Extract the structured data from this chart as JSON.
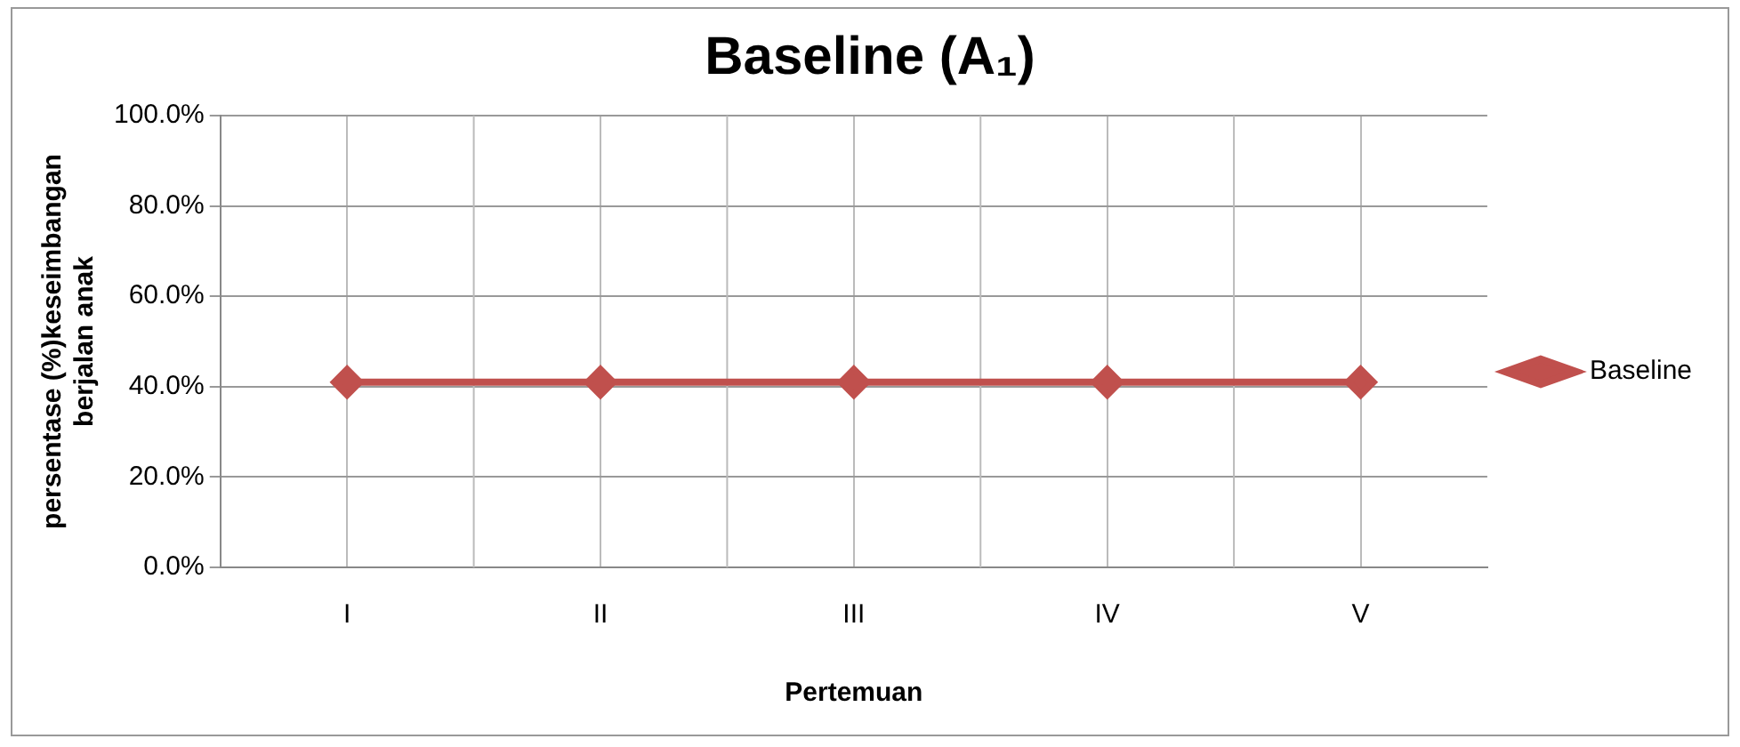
{
  "chart_data": {
    "type": "line",
    "title": "Baseline (A₁)",
    "xlabel": "Pertemuan",
    "ylabel": "persentase (%)keseimbangan berjalan anak",
    "categories": [
      "I",
      "II",
      "III",
      "IV",
      "V"
    ],
    "series": [
      {
        "name": "Baseline",
        "color": "#c0504d",
        "values": [
          41,
          41,
          41,
          41,
          41
        ]
      }
    ],
    "ylim": [
      0,
      100
    ],
    "yticks": [
      {
        "value": 0,
        "label": "0.0%"
      },
      {
        "value": 20,
        "label": "20.0%"
      },
      {
        "value": 40,
        "label": "40.0%"
      },
      {
        "value": 60,
        "label": "60.0%"
      },
      {
        "value": 80,
        "label": "80.0%"
      },
      {
        "value": 100,
        "label": "100.0%"
      }
    ],
    "grid": true,
    "legend": "right",
    "marker": "diamond",
    "line_style": "solid"
  }
}
